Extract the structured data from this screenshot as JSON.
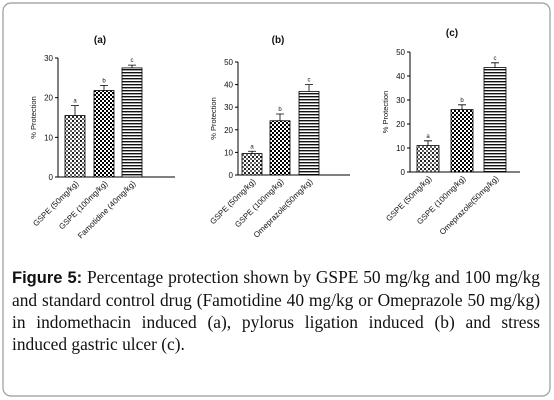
{
  "chart_data": [
    {
      "type": "bar",
      "title": "(a)",
      "y_label": "% Protection",
      "categories": [
        "GSPE (50mg/kg)",
        "GSPE (100mg/kg)",
        "Famotidine (40mg/kg)"
      ],
      "values": [
        15.5,
        21.8,
        27.5
      ],
      "errors": [
        2.5,
        1.3,
        0.7
      ],
      "annotations": [
        "a",
        "b",
        "c"
      ],
      "ylim": [
        0,
        30
      ],
      "yticks": [
        0,
        10,
        20,
        30
      ]
    },
    {
      "type": "bar",
      "title": "(b)",
      "y_label": "% Protection",
      "categories": [
        "GSPE (50mg/kg)",
        "GSPE (100mg/kg)",
        "Omeprazole(50mg/kg)"
      ],
      "values": [
        9.5,
        24,
        37
      ],
      "errors": [
        1,
        3,
        3
      ],
      "annotations": [
        "a",
        "b",
        "c"
      ],
      "ylim": [
        0,
        50
      ],
      "yticks": [
        0,
        10,
        20,
        30,
        40,
        50
      ]
    },
    {
      "type": "bar",
      "title": "(c)",
      "y_label": "% Protection",
      "categories": [
        "GSPE (50mg/kg)",
        "GSPE (100mg/kg)",
        "Omeprazole(50mg/kg)"
      ],
      "values": [
        11,
        26,
        43.5
      ],
      "errors": [
        2,
        2,
        2
      ],
      "annotations": [
        "a",
        "b",
        "c"
      ],
      "ylim": [
        0,
        50
      ],
      "yticks": [
        0,
        10,
        20,
        30,
        40,
        50
      ]
    }
  ],
  "caption": {
    "label": "Figure 5:",
    "text": "Percentage protection shown by GSPE 50 mg/kg and 100 mg/kg and standard control drug (Famotidine 40 mg/kg or Omeprazole 50 mg/kg) in indomethacin induced (a), pylorus ligation induced (b) and stress induced gastric ulcer (c)."
  }
}
